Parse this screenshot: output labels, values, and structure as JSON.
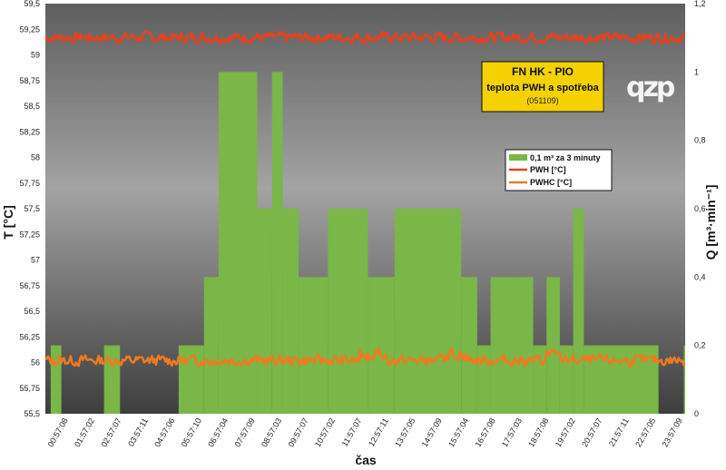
{
  "chart_data": {
    "type": "bar",
    "title": "FN HK - PIO",
    "subtitle": "teplota PWH a spotřeba",
    "code": "(051109)",
    "logo": "qzp",
    "xlabel": "čas",
    "ylabel_left": "T [°C]",
    "ylabel_right": "Q [m³·min⁻¹]",
    "ylim_left": [
      55.5,
      59.5
    ],
    "ylim_right": [
      0,
      1.2
    ],
    "yticks_left": [
      "59,5",
      "59,25",
      "59",
      "58,75",
      "58,5",
      "58,25",
      "58",
      "57,75",
      "57,5",
      "57,25",
      "57",
      "56,75",
      "56,5",
      "56,25",
      "56",
      "55,75",
      "55,5"
    ],
    "yticks_right": [
      "1,2",
      "1",
      "0,8",
      "0,6",
      "0,4",
      "0,2",
      "0"
    ],
    "xticks": [
      "00:57:08",
      "01:57:02",
      "02:57:07",
      "03:57:11",
      "04:57:06",
      "05:57:10",
      "06:57:04",
      "07:57:09",
      "08:57:03",
      "09:57:07",
      "10:57:02",
      "11:57:07",
      "12:57:11",
      "13:57:05",
      "14:57:09",
      "15:57:04",
      "16:57:08",
      "17:57:03",
      "18:57:08",
      "19:57:02",
      "20:57:07",
      "21:57:11",
      "22:57:05",
      "23:57:09"
    ],
    "xlim_hours": [
      0,
      24
    ],
    "legend": [
      {
        "label": "0,1 m³  za 3 minuty",
        "color": "#7ab648",
        "kind": "bar"
      },
      {
        "label": "PWH [°C]",
        "color": "#e8401c",
        "kind": "line"
      },
      {
        "label": "PWHC [°C]",
        "color": "#f07a20",
        "kind": "line"
      }
    ],
    "bars": [
      {
        "start": 0.2,
        "end": 0.6,
        "value": 0.2
      },
      {
        "start": 2.2,
        "end": 2.8,
        "value": 0.2
      },
      {
        "start": 5.0,
        "end": 5.95,
        "value": 0.2
      },
      {
        "start": 5.95,
        "end": 6.5,
        "value": 0.4
      },
      {
        "start": 6.5,
        "end": 7.95,
        "value": 1.0
      },
      {
        "start": 7.95,
        "end": 8.5,
        "value": 0.6
      },
      {
        "start": 8.5,
        "end": 8.9,
        "value": 1.0
      },
      {
        "start": 8.9,
        "end": 9.5,
        "value": 0.6
      },
      {
        "start": 9.5,
        "end": 10.6,
        "value": 0.4
      },
      {
        "start": 10.6,
        "end": 12.1,
        "value": 0.6
      },
      {
        "start": 12.1,
        "end": 13.1,
        "value": 0.4
      },
      {
        "start": 13.1,
        "end": 15.6,
        "value": 0.6
      },
      {
        "start": 15.6,
        "end": 16.2,
        "value": 0.4
      },
      {
        "start": 16.2,
        "end": 16.7,
        "value": 0.2
      },
      {
        "start": 16.7,
        "end": 18.3,
        "value": 0.4
      },
      {
        "start": 18.3,
        "end": 18.8,
        "value": 0.2
      },
      {
        "start": 18.8,
        "end": 19.3,
        "value": 0.4
      },
      {
        "start": 19.3,
        "end": 19.8,
        "value": 0.2
      },
      {
        "start": 19.8,
        "end": 20.2,
        "value": 0.6
      },
      {
        "start": 20.2,
        "end": 23.0,
        "value": 0.2
      },
      {
        "start": 23.0,
        "end": 23.95,
        "value": 0.0
      },
      {
        "start": 23.95,
        "end": 24.2,
        "value": 0.2
      }
    ],
    "series": [
      {
        "name": "PWH [°C]",
        "color": "#e8401c",
        "mean": 59.17,
        "amplitude": 0.07,
        "seed": 7
      },
      {
        "name": "PWHC [°C]",
        "color": "#f07a20",
        "mean": 56.02,
        "amplitude": 0.07,
        "seed": 13,
        "bumps": [
          {
            "start": 11.8,
            "end": 12.8,
            "delta": 0.07
          },
          {
            "start": 15.0,
            "end": 15.8,
            "delta": 0.06
          },
          {
            "start": 18.8,
            "end": 19.3,
            "delta": 0.08
          }
        ]
      }
    ]
  }
}
